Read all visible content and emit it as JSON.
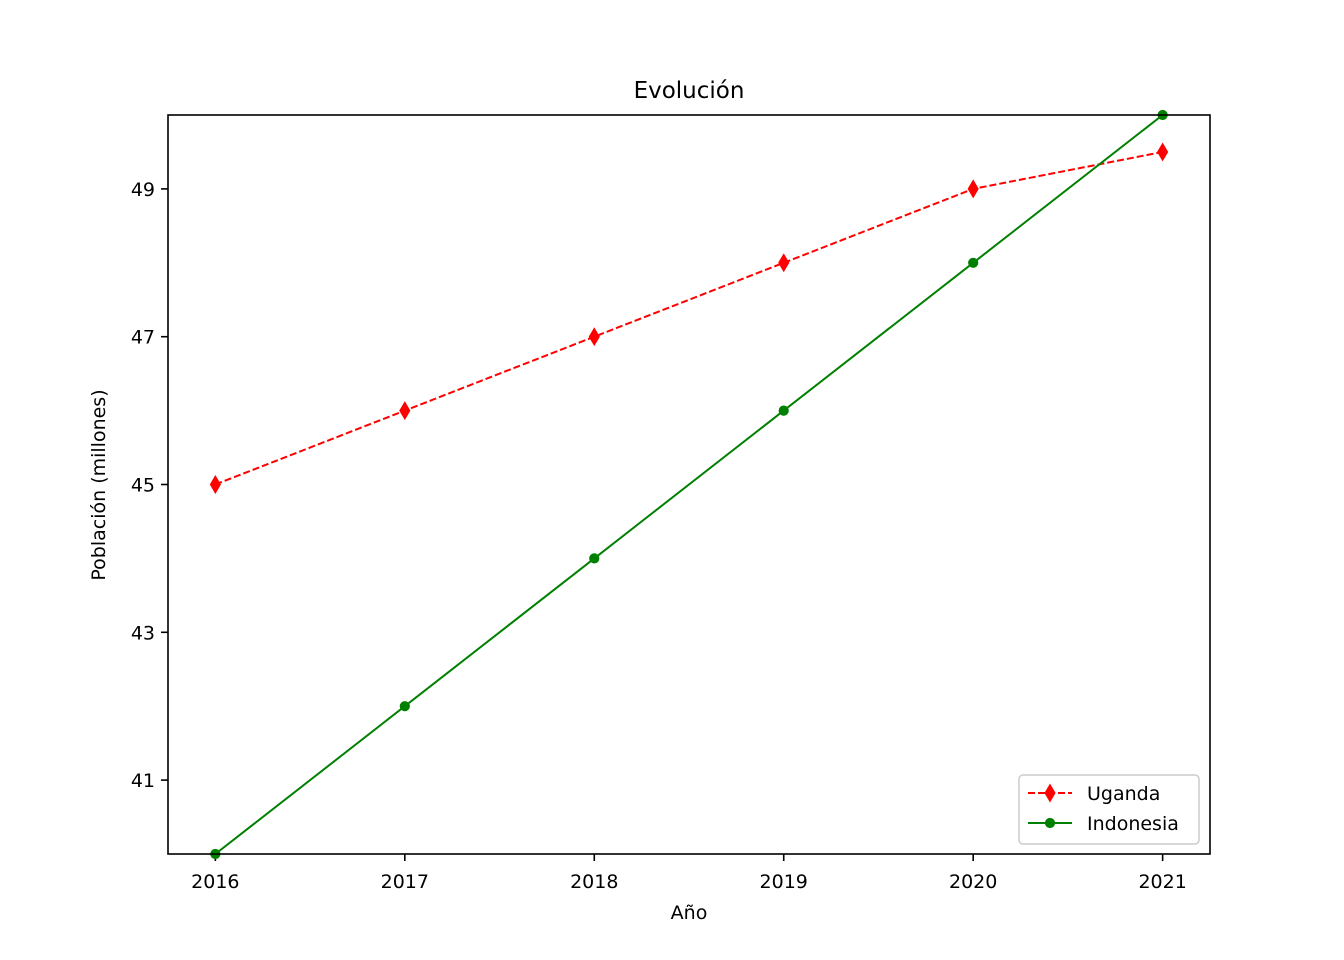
{
  "chart_data": {
    "type": "line",
    "title": "Evolución",
    "xlabel": "Año",
    "ylabel": "Población (millones)",
    "x": [
      2016,
      2017,
      2018,
      2019,
      2020,
      2021
    ],
    "xlim": [
      2015.75,
      2021.25
    ],
    "ylim": [
      40,
      50
    ],
    "yticks": [
      41,
      43,
      45,
      47,
      49
    ],
    "grid": false,
    "legend_position": "lower right",
    "series": [
      {
        "name": "Uganda",
        "values": [
          45,
          46,
          47,
          48,
          49,
          49.5
        ],
        "color": "#ff0000",
        "line_style": "dashed",
        "marker": "thin-diamond"
      },
      {
        "name": "Indonesia",
        "values": [
          40,
          42,
          44,
          46,
          48,
          50
        ],
        "color": "#008000",
        "line_style": "solid",
        "marker": "circle"
      }
    ]
  }
}
